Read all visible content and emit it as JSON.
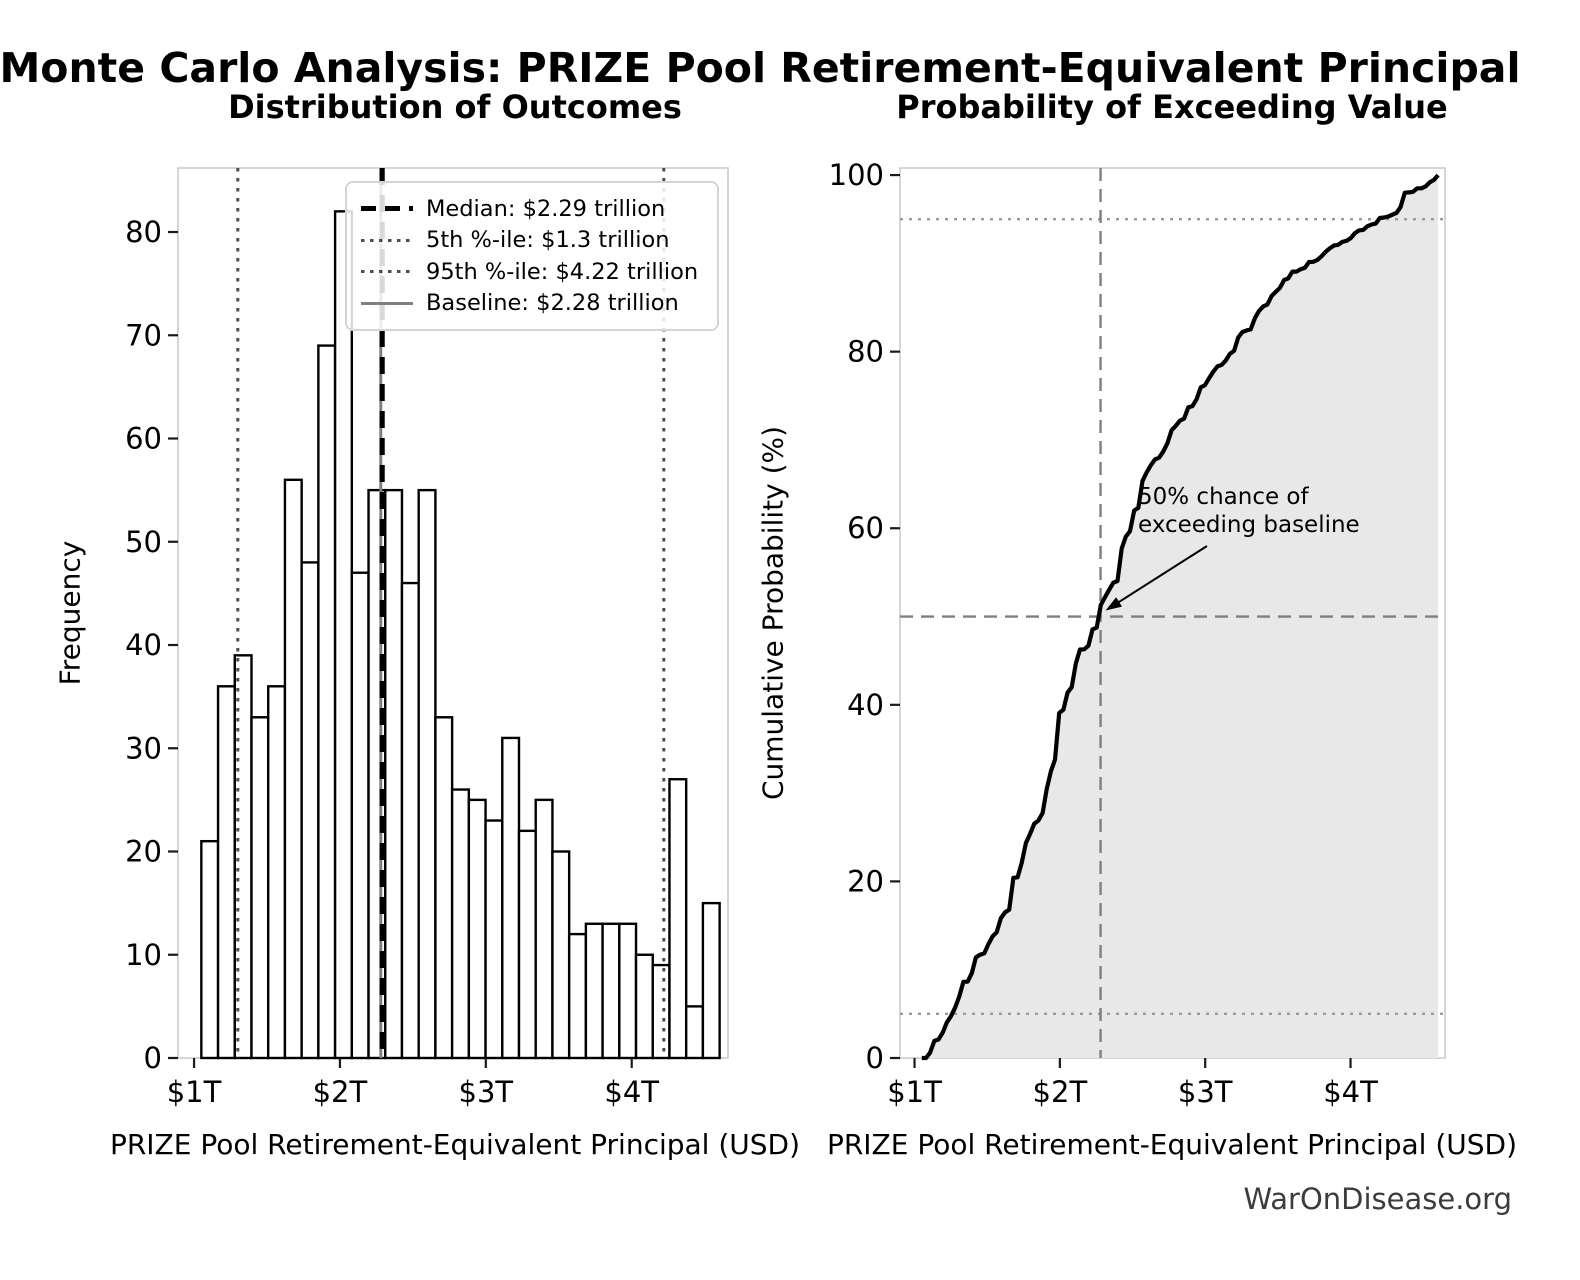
{
  "main_title": "Monte Carlo Analysis: PRIZE Pool Retirement-Equivalent Principal",
  "footer": "WarOnDisease.org",
  "chart_data": [
    {
      "type": "bar",
      "subtype": "histogram",
      "title": "Distribution of Outcomes",
      "xlabel": "PRIZE Pool Retirement-Equivalent Principal (USD)",
      "ylabel": "Frequency",
      "unit": "trillion USD",
      "n_simulations": 1000,
      "bin_start": 1.05,
      "bin_width": 0.1146,
      "frequencies": [
        21,
        36,
        39,
        33,
        36,
        56,
        48,
        69,
        82,
        47,
        55,
        55,
        46,
        55,
        33,
        26,
        25,
        23,
        31,
        22,
        25,
        20,
        12,
        13,
        13,
        13,
        10,
        9,
        27,
        5,
        15
      ],
      "xtick_values": [
        1,
        2,
        3,
        4
      ],
      "xtick_labels": [
        "$1T",
        "$2T",
        "$3T",
        "$4T"
      ],
      "ytick_values": [
        0,
        10,
        20,
        30,
        40,
        50,
        60,
        70,
        80
      ],
      "xlim": [
        0.89,
        4.66
      ],
      "ylim": [
        0,
        86.2
      ],
      "grid": false,
      "bar_fill": "#ffffff",
      "bar_edge": "#000000",
      "legend_position": "upper center-right inside",
      "reference_lines": [
        {
          "label": "Median: $2.29 trillion",
          "value": 2.29,
          "style": "dashed",
          "color": "#000000",
          "width": 5
        },
        {
          "label": "5th %-ile: $1.3 trillion",
          "value": 1.3,
          "style": "dotted",
          "color": "#4d4d4d",
          "width": 3
        },
        {
          "label": "95th %-ile: $4.22 trillion",
          "value": 4.22,
          "style": "dotted",
          "color": "#4d4d4d",
          "width": 3
        },
        {
          "label": "Baseline: $2.28 trillion",
          "value": 2.28,
          "style": "solid",
          "color": "#808080",
          "width": 3
        }
      ]
    },
    {
      "type": "line",
      "subtype": "empirical-cdf",
      "title": "Probability of Exceeding Value",
      "xlabel": "PRIZE Pool Retirement-Equivalent Principal (USD)",
      "ylabel": "Cumulative Probability (%)",
      "xtick_values": [
        1,
        2,
        3,
        4
      ],
      "xtick_labels": [
        "$1T",
        "$2T",
        "$3T",
        "$4T"
      ],
      "ytick_values": [
        0,
        20,
        40,
        60,
        80,
        100
      ],
      "xlim": [
        0.9,
        4.65
      ],
      "ylim": [
        0,
        100.8
      ],
      "x_edges_start": 1.05,
      "x_edges_step": 0.1146,
      "cumulative_percent": [
        0,
        2.1,
        5.7,
        9.6,
        12.9,
        16.5,
        22.1,
        26.9,
        33.8,
        42.0,
        46.7,
        52.2,
        57.7,
        62.3,
        67.8,
        71.1,
        73.7,
        76.2,
        78.5,
        81.6,
        83.8,
        86.3,
        88.3,
        89.5,
        90.8,
        92.1,
        93.4,
        94.4,
        95.3,
        98.0,
        98.5,
        100.0
      ],
      "line_color": "#000000",
      "fill_color": "#e8e8e8",
      "hlines": [
        {
          "value": 5,
          "style": "dotted",
          "color": "#9a9a9a"
        },
        {
          "value": 95,
          "style": "dotted",
          "color": "#9a9a9a"
        },
        {
          "value": 50,
          "style": "dashed",
          "color": "#7f7f7f"
        }
      ],
      "vlines": [
        {
          "value": 2.28,
          "style": "dashed",
          "color": "#7f7f7f",
          "meaning": "baseline"
        }
      ],
      "annotation": {
        "line1": "50% chance of",
        "line2": "exceeding baseline",
        "arrow_target_x": 2.28,
        "arrow_target_y": 50
      }
    }
  ]
}
